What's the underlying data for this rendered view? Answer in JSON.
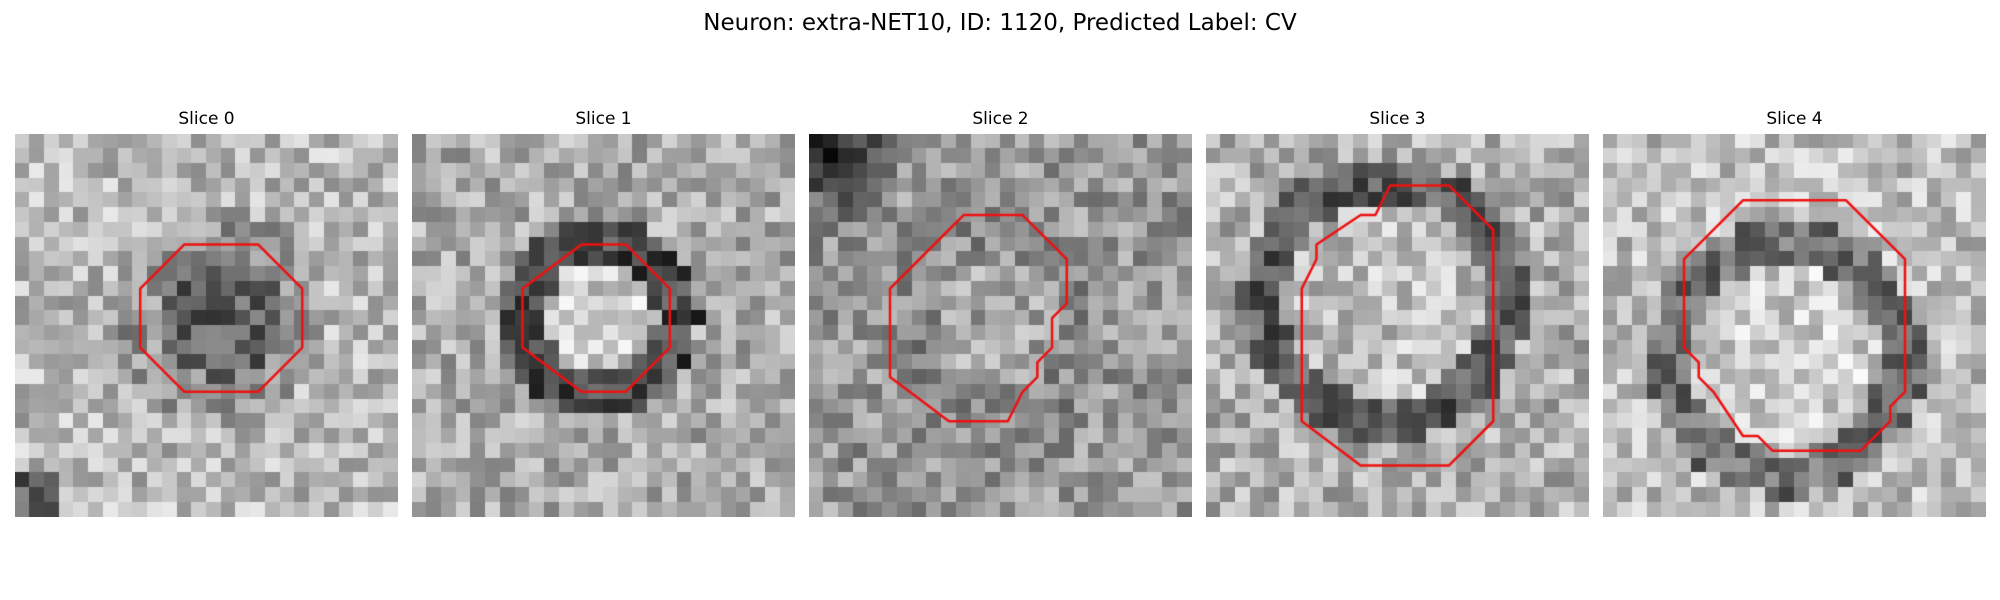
{
  "figure": {
    "title": "Neuron: extra-NET10, ID: 1120, Predicted Label: CV"
  },
  "panels": [
    {
      "title": "Slice 0",
      "center_mean": 95,
      "ring_mean": 150,
      "surround_mean": 185,
      "corner_dark": "bl",
      "contour": [
        [
          11.5,
          7.5
        ],
        [
          16.5,
          7.5
        ],
        [
          19.5,
          10.5
        ],
        [
          19.5,
          14.5
        ],
        [
          16.5,
          17.5
        ],
        [
          11.5,
          17.5
        ],
        [
          8.5,
          14.5
        ],
        [
          8.5,
          10.5
        ]
      ]
    },
    {
      "title": "Slice 1",
      "center_mean": 205,
      "ring_mean": 70,
      "surround_mean": 170,
      "corner_dark": "none",
      "contour": [
        [
          11.5,
          7.5
        ],
        [
          14.5,
          7.5
        ],
        [
          17.5,
          10.5
        ],
        [
          17.5,
          14.5
        ],
        [
          14.5,
          17.5
        ],
        [
          11.5,
          17.5
        ],
        [
          7.5,
          14.5
        ],
        [
          7.5,
          10.5
        ]
      ]
    },
    {
      "title": "Slice 2",
      "center_mean": 165,
      "ring_mean": 140,
      "surround_mean": 150,
      "corner_dark": "tl",
      "contour": [
        [
          10.5,
          5.5
        ],
        [
          14.5,
          5.5
        ],
        [
          17.5,
          8.5
        ],
        [
          17.5,
          11.5
        ],
        [
          16.5,
          12.5
        ],
        [
          16.5,
          14.5
        ],
        [
          15.5,
          15.5
        ],
        [
          15.5,
          16.5
        ],
        [
          14.5,
          17.5
        ],
        [
          13.5,
          19.5
        ],
        [
          9.5,
          19.5
        ],
        [
          5.5,
          16.5
        ],
        [
          5.5,
          10.5
        ],
        [
          9.5,
          6.5
        ]
      ]
    },
    {
      "title": "Slice 3",
      "center_mean": 190,
      "ring_mean": 90,
      "surround_mean": 175,
      "corner_dark": "none",
      "contour": [
        [
          12.5,
          3.5
        ],
        [
          16.5,
          3.5
        ],
        [
          19.5,
          6.5
        ],
        [
          19.5,
          19.5
        ],
        [
          16.5,
          22.5
        ],
        [
          10.5,
          22.5
        ],
        [
          6.5,
          19.5
        ],
        [
          6.5,
          10.5
        ],
        [
          7.5,
          8.5
        ],
        [
          7.5,
          7.5
        ],
        [
          10.5,
          5.5
        ],
        [
          11.5,
          5.5
        ]
      ]
    },
    {
      "title": "Slice 4",
      "center_mean": 205,
      "ring_mean": 110,
      "surround_mean": 190,
      "corner_dark": "none",
      "contour": [
        [
          9.5,
          4.5
        ],
        [
          16.5,
          4.5
        ],
        [
          20.5,
          8.5
        ],
        [
          20.5,
          17.5
        ],
        [
          19.5,
          18.5
        ],
        [
          19.5,
          19.5
        ],
        [
          17.5,
          21.5
        ],
        [
          11.5,
          21.5
        ],
        [
          10.5,
          20.5
        ],
        [
          9.5,
          20.5
        ],
        [
          7.5,
          17.5
        ],
        [
          6.5,
          16.5
        ],
        [
          6.5,
          15.5
        ],
        [
          5.5,
          14.5
        ],
        [
          5.5,
          8.5
        ]
      ]
    }
  ],
  "grid_size": 26,
  "contour_color": "#ee1111"
}
